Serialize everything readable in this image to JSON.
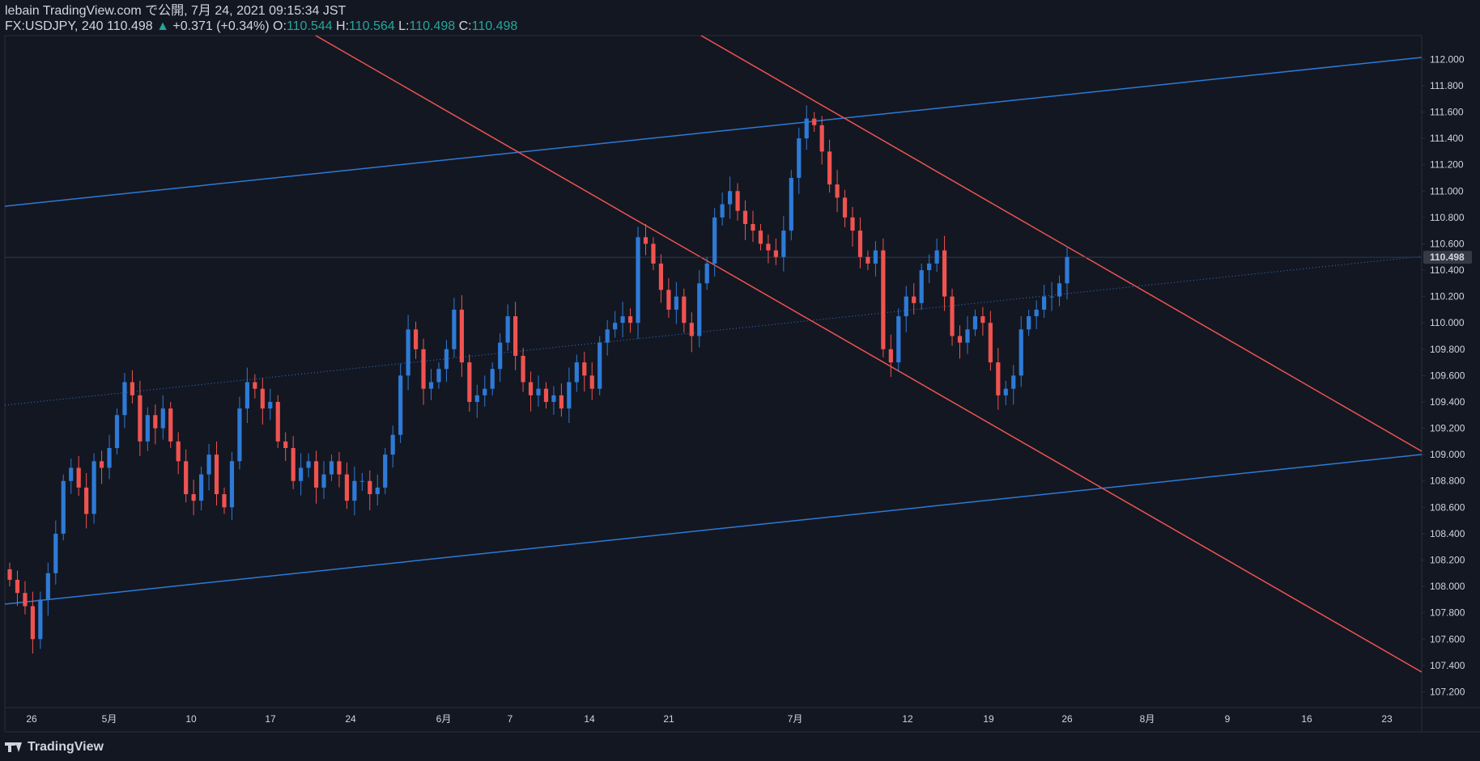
{
  "header": {
    "publisher": "lebain TradingView.com で公開, 7月 24, 2021 09:15:34 JST",
    "symbol_line": "FX:USDJPY, 240 110.498",
    "change_arrow": "▲",
    "change": "+0.371 (+0.34%)",
    "o_label": "O:",
    "o_value": "110.544",
    "h_label": "H:",
    "h_value": "110.564",
    "l_label": "L:",
    "l_value": "110.498",
    "c_label": "C:",
    "c_value": "110.498"
  },
  "footer": {
    "brand": "TradingView"
  },
  "colors": {
    "background": "#131722",
    "up": "#2e7ad6",
    "down": "#ef5350",
    "channel_blue": "#2e7ad6",
    "channel_red": "#ef5350",
    "text": "#d1d4dc",
    "last_price_bg": "#363a45"
  },
  "chart_data": {
    "type": "candlestick",
    "symbol": "FX:USDJPY",
    "interval": "240",
    "last_price": 110.498,
    "ylim": [
      107.08,
      112.18
    ],
    "y_ticks": [
      107.2,
      107.4,
      107.6,
      107.8,
      108.0,
      108.2,
      108.4,
      108.6,
      108.8,
      109.0,
      109.2,
      109.4,
      109.6,
      109.8,
      110.0,
      110.2,
      110.4,
      110.6,
      110.8,
      111.0,
      111.2,
      111.4,
      111.6,
      111.8,
      112.0
    ],
    "x_ticks": [
      "26",
      "5月",
      "10",
      "17",
      "24",
      "6月",
      "7",
      "14",
      "21",
      "7月",
      "12",
      "19",
      "26",
      "8月",
      "9",
      "16",
      "23"
    ],
    "closes": [
      108.05,
      107.95,
      107.85,
      107.6,
      107.9,
      108.1,
      108.4,
      108.8,
      108.9,
      108.75,
      108.55,
      108.95,
      108.9,
      109.05,
      109.3,
      109.55,
      109.45,
      109.1,
      109.3,
      109.2,
      109.35,
      109.1,
      108.95,
      108.7,
      108.65,
      108.85,
      109.0,
      108.7,
      108.6,
      108.95,
      109.35,
      109.55,
      109.5,
      109.35,
      109.4,
      109.1,
      109.05,
      108.8,
      108.9,
      108.95,
      108.75,
      108.85,
      108.95,
      108.85,
      108.65,
      108.8,
      108.8,
      108.7,
      108.75,
      109.0,
      109.15,
      109.6,
      109.95,
      109.8,
      109.5,
      109.55,
      109.65,
      109.8,
      110.1,
      109.7,
      109.4,
      109.45,
      109.5,
      109.65,
      109.85,
      110.05,
      109.75,
      109.55,
      109.45,
      109.5,
      109.4,
      109.45,
      109.35,
      109.55,
      109.7,
      109.6,
      109.5,
      109.85,
      109.95,
      110.0,
      110.05,
      110.0,
      110.65,
      110.6,
      110.45,
      110.25,
      110.1,
      110.2,
      110.0,
      109.9,
      110.3,
      110.45,
      110.8,
      110.9,
      111.0,
      110.85,
      110.75,
      110.7,
      110.6,
      110.55,
      110.5,
      110.7,
      111.1,
      111.4,
      111.55,
      111.5,
      111.3,
      111.05,
      110.95,
      110.8,
      110.7,
      110.5,
      110.45,
      110.55,
      109.8,
      109.7,
      110.05,
      110.2,
      110.15,
      110.4,
      110.45,
      110.55,
      110.2,
      109.9,
      109.85,
      109.95,
      110.05,
      110.0,
      109.7,
      109.45,
      109.5,
      109.6,
      109.95,
      110.05,
      110.1,
      110.2,
      110.2,
      110.3,
      110.5
    ]
  }
}
